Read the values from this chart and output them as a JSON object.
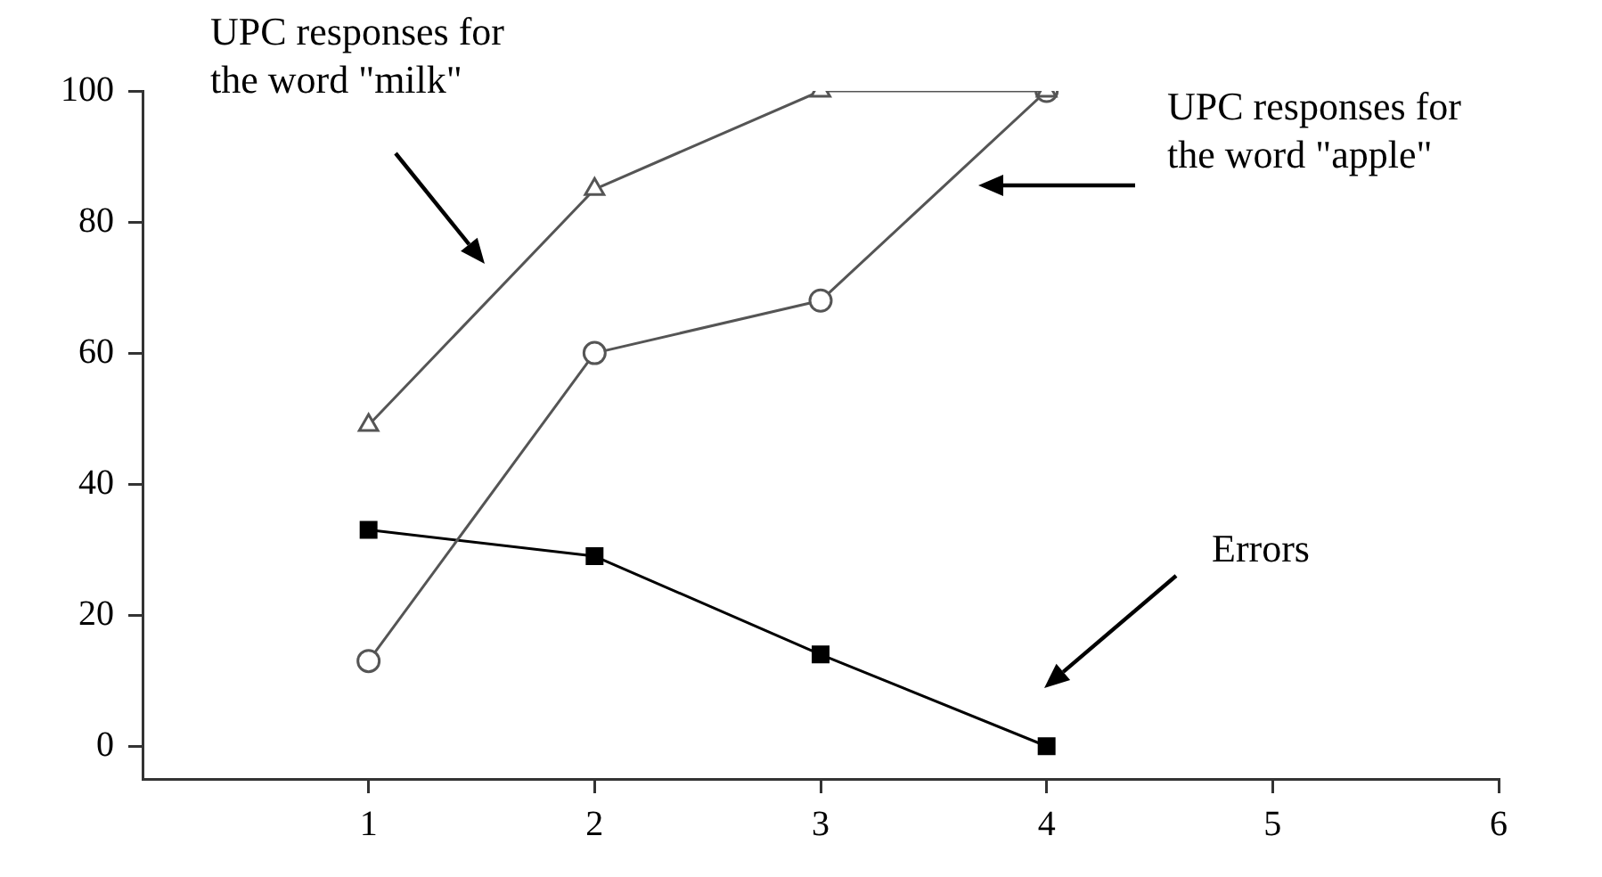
{
  "chart_data": {
    "type": "line",
    "x": [
      1,
      2,
      3,
      4
    ],
    "series": [
      {
        "color": "#555555",
        "marker": "triangle",
        "values": [
          49,
          85,
          100,
          100
        ]
      },
      {
        "color": "#555555",
        "marker": "circle",
        "values": [
          13,
          60,
          68,
          100
        ]
      },
      {
        "color": "#000000",
        "marker": "square",
        "values": [
          33,
          29,
          14,
          0
        ]
      }
    ],
    "xlim": [
      0,
      6
    ],
    "xticks": [
      1,
      2,
      3,
      4,
      5,
      6
    ],
    "ylim": [
      -5,
      100
    ],
    "yticks": [
      0,
      20,
      40,
      60,
      80,
      100
    ],
    "grid": false,
    "legend": false,
    "line_style": "solid",
    "annotations": [
      "UPC responses for\nthe word \"milk\"",
      "UPC responses for\nthe word \"apple\"",
      "Errors"
    ]
  }
}
